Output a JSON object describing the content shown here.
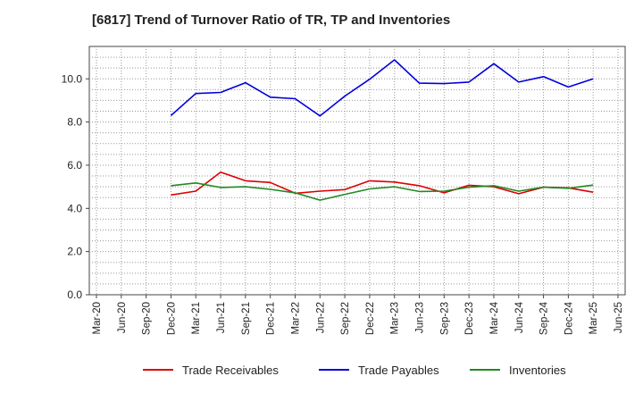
{
  "chart_data": {
    "type": "line",
    "title": "[6817]  Trend of Turnover Ratio of TR, TP and Inventories",
    "xlabel": "",
    "ylabel": "",
    "x": [
      "Mar-20",
      "Jun-20",
      "Sep-20",
      "Dec-20",
      "Mar-21",
      "Jun-21",
      "Sep-21",
      "Dec-21",
      "Mar-22",
      "Jun-22",
      "Sep-22",
      "Dec-22",
      "Mar-23",
      "Jun-23",
      "Sep-23",
      "Dec-23",
      "Mar-24",
      "Jun-24",
      "Sep-24",
      "Dec-24",
      "Mar-25",
      "Jun-25"
    ],
    "ylim": [
      0,
      11.5
    ],
    "yticks": [
      "0.0",
      "2.0",
      "4.0",
      "6.0",
      "8.0",
      "10.0"
    ],
    "ytick_values": [
      0,
      2,
      4,
      6,
      8,
      10
    ],
    "grid": true,
    "legend_position": "bottom",
    "series": [
      {
        "name": "Trade Receivables",
        "color": "#dd0000",
        "values": [
          null,
          null,
          null,
          4.62,
          4.8,
          5.68,
          5.28,
          5.2,
          4.7,
          4.8,
          4.87,
          5.28,
          5.22,
          5.05,
          4.72,
          5.07,
          5.0,
          4.68,
          4.98,
          4.95,
          4.75,
          null
        ]
      },
      {
        "name": "Trade Payables",
        "color": "#0000dd",
        "values": [
          null,
          null,
          null,
          8.3,
          9.32,
          9.37,
          9.82,
          9.15,
          9.08,
          8.28,
          9.2,
          9.98,
          10.88,
          9.8,
          9.78,
          9.85,
          10.7,
          9.85,
          10.1,
          9.62,
          10.0,
          null
        ]
      },
      {
        "name": "Inventories",
        "color": "#228822",
        "values": [
          null,
          null,
          null,
          5.05,
          5.18,
          4.97,
          5.0,
          4.88,
          4.72,
          4.38,
          4.65,
          4.9,
          5.0,
          4.78,
          4.8,
          4.98,
          5.05,
          4.8,
          4.98,
          4.93,
          5.08,
          null
        ]
      }
    ]
  }
}
